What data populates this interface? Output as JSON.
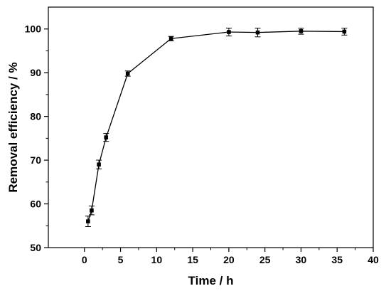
{
  "chart_data": {
    "type": "line",
    "xlabel": "Time / h",
    "ylabel": "Removal efficiency / %",
    "xlim": [
      -5,
      40
    ],
    "ylim": [
      50,
      105
    ],
    "xticks": [
      0,
      5,
      10,
      15,
      20,
      25,
      30,
      35,
      40
    ],
    "yticks": [
      50,
      60,
      70,
      80,
      90,
      100
    ],
    "grid": false,
    "legend": "none",
    "series": [
      {
        "marker": "square",
        "color": "#000000",
        "x": [
          0.5,
          1,
          2,
          3,
          6,
          12,
          20,
          24,
          30,
          36
        ],
        "y": [
          56.0,
          58.5,
          69.0,
          75.2,
          89.8,
          97.8,
          99.3,
          99.2,
          99.5,
          99.4
        ],
        "yerr": [
          1.2,
          1.0,
          1.0,
          0.9,
          0.6,
          0.5,
          0.9,
          1.0,
          0.7,
          0.8
        ]
      }
    ]
  }
}
